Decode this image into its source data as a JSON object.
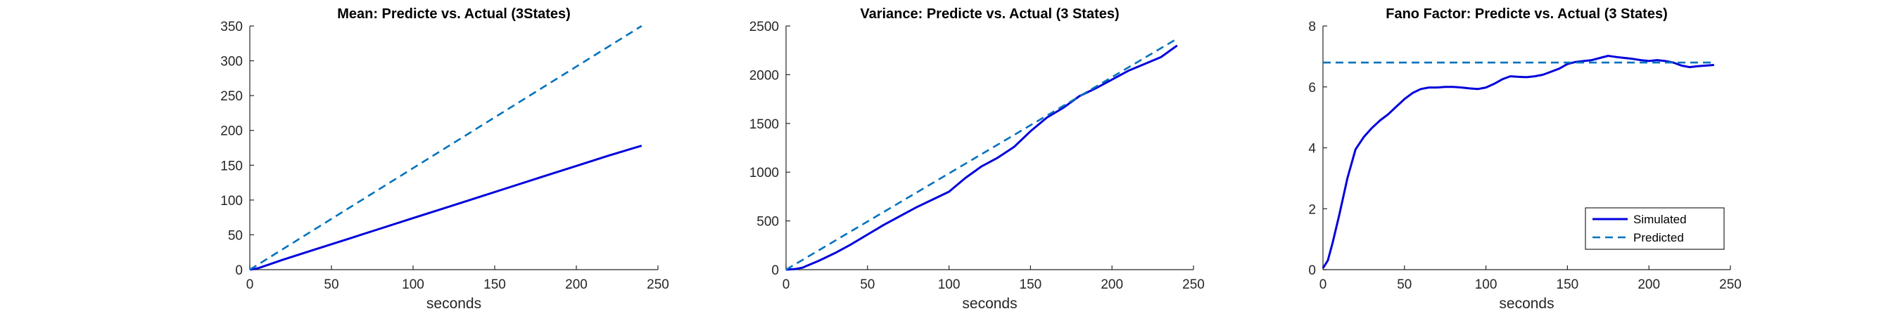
{
  "colors": {
    "simulated": "#0000dd",
    "predicted": "#0072bd",
    "axis": "#262626"
  },
  "chart_data": [
    {
      "type": "line",
      "title": "Mean: Predicte vs. Actual (3States)",
      "xlabel": "seconds",
      "ylabel": "",
      "xlim": [
        0,
        250
      ],
      "ylim": [
        0,
        350
      ],
      "xticks": [
        "0",
        "50",
        "100",
        "150",
        "200",
        "250"
      ],
      "yticks": [
        "0",
        "50",
        "100",
        "150",
        "200",
        "250",
        "300",
        "350"
      ],
      "grid": false,
      "series": [
        {
          "style": "solid",
          "x": [
            0,
            5,
            10,
            20,
            40,
            60,
            80,
            100,
            120,
            140,
            160,
            180,
            200,
            220,
            240
          ],
          "y": [
            0,
            2,
            6,
            14,
            29,
            44,
            59,
            74,
            89,
            104,
            119,
            134,
            149,
            164,
            178
          ]
        },
        {
          "style": "dashed",
          "x": [
            0,
            240
          ],
          "y": [
            0,
            350
          ]
        }
      ]
    },
    {
      "type": "line",
      "title": "Variance: Predicte vs. Actual (3 States)",
      "xlabel": "seconds",
      "ylabel": "",
      "xlim": [
        0,
        250
      ],
      "ylim": [
        0,
        2500
      ],
      "xticks": [
        "0",
        "50",
        "100",
        "150",
        "200",
        "250"
      ],
      "yticks": [
        "0",
        "500",
        "1000",
        "1500",
        "2000",
        "2500"
      ],
      "grid": false,
      "series": [
        {
          "style": "solid",
          "x": [
            0,
            5,
            10,
            20,
            30,
            40,
            50,
            60,
            70,
            80,
            90,
            100,
            110,
            120,
            130,
            140,
            150,
            160,
            170,
            180,
            190,
            200,
            210,
            220,
            230,
            240
          ],
          "y": [
            0,
            5,
            20,
            90,
            170,
            260,
            360,
            460,
            550,
            640,
            720,
            800,
            940,
            1060,
            1150,
            1260,
            1420,
            1560,
            1660,
            1780,
            1860,
            1950,
            2040,
            2110,
            2180,
            2300
          ]
        },
        {
          "style": "dashed",
          "x": [
            0,
            240
          ],
          "y": [
            0,
            2370
          ]
        }
      ]
    },
    {
      "type": "line",
      "title": "Fano Factor: Predicte vs. Actual (3 States)",
      "xlabel": "seconds",
      "ylabel": "",
      "xlim": [
        0,
        250
      ],
      "ylim": [
        0,
        8
      ],
      "xticks": [
        "0",
        "50",
        "100",
        "150",
        "200",
        "250"
      ],
      "yticks": [
        "0",
        "2",
        "4",
        "6",
        "8"
      ],
      "grid": false,
      "legend": {
        "placement": "bottom-right",
        "entries": [
          "Simulated",
          "Predicted"
        ]
      },
      "series": [
        {
          "name": "Simulated",
          "style": "solid",
          "x": [
            0,
            3,
            6,
            10,
            15,
            20,
            25,
            30,
            35,
            40,
            45,
            50,
            55,
            60,
            65,
            70,
            75,
            80,
            85,
            90,
            95,
            100,
            105,
            110,
            115,
            120,
            125,
            130,
            135,
            140,
            145,
            150,
            155,
            160,
            165,
            170,
            175,
            180,
            185,
            190,
            195,
            200,
            205,
            210,
            215,
            220,
            225,
            230,
            235,
            240
          ],
          "y": [
            0.05,
            0.3,
            0.9,
            1.8,
            3.0,
            3.95,
            4.35,
            4.65,
            4.9,
            5.1,
            5.35,
            5.6,
            5.8,
            5.93,
            5.98,
            5.98,
            6.0,
            6.0,
            5.98,
            5.95,
            5.93,
            5.98,
            6.1,
            6.25,
            6.35,
            6.33,
            6.32,
            6.35,
            6.4,
            6.5,
            6.6,
            6.75,
            6.82,
            6.85,
            6.88,
            6.95,
            7.02,
            6.98,
            6.95,
            6.92,
            6.88,
            6.85,
            6.88,
            6.85,
            6.8,
            6.7,
            6.65,
            6.68,
            6.7,
            6.72
          ]
        },
        {
          "name": "Predicted",
          "style": "dashed",
          "x": [
            0,
            240
          ],
          "y": [
            6.8,
            6.8
          ]
        }
      ]
    }
  ]
}
